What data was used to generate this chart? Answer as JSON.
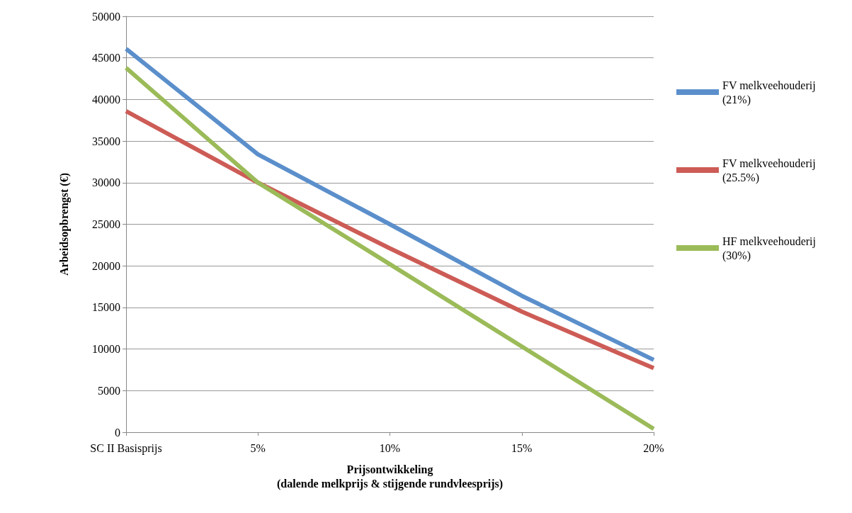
{
  "chart_data": {
    "type": "line",
    "xlabel": "Prijsontwikkeling\n(dalende melkprijs & stijgende rundvleesprijs)",
    "ylabel": "Arbeidsopbrengst (€)",
    "categories": [
      "SC II Basisprijs",
      "5%",
      "10%",
      "15%",
      "20%"
    ],
    "series": [
      {
        "name": "FV melkveehouderij (21%)",
        "color": "#5b8fcb",
        "values": [
          46100,
          33400,
          25000,
          16400,
          8700
        ]
      },
      {
        "name": "FV melkveehouderij (25.5%)",
        "color": "#cd5c56",
        "values": [
          38600,
          30000,
          22100,
          14500,
          7700
        ]
      },
      {
        "name": "HF melkveehouderij (30%)",
        "color": "#9bbb59",
        "values": [
          43800,
          30000,
          20200,
          10300,
          400
        ]
      }
    ],
    "ylim": [
      0,
      50000
    ],
    "yticks": [
      0,
      5000,
      10000,
      15000,
      20000,
      25000,
      30000,
      35000,
      40000,
      45000,
      50000
    ],
    "grid": "y",
    "legend": "right",
    "marker": "none",
    "line_style": "solid"
  }
}
